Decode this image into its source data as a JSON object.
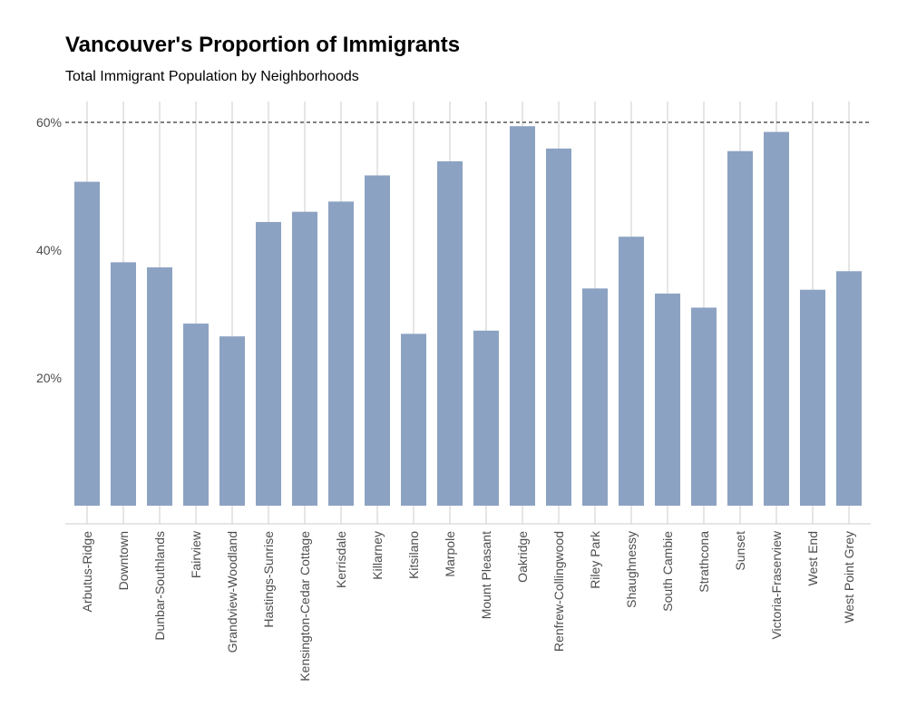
{
  "chart_data": {
    "type": "bar",
    "title": "Vancouver's Proportion of Immigrants",
    "subtitle": "Total Immigrant Population by Neighborhoods",
    "xlabel": "",
    "ylabel": "",
    "categories": [
      "Arbutus-Ridge",
      "Downtown",
      "Dunbar-Southlands",
      "Fairview",
      "Grandview-Woodland",
      "Hastings-Sunrise",
      "Kensington-Cedar Cottage",
      "Kerrisdale",
      "Killarney",
      "Kitsilano",
      "Marpole",
      "Mount Pleasant",
      "Oakridge",
      "Renfrew-Collingwood",
      "Riley Park",
      "Shaughnessy",
      "South Cambie",
      "Strathcona",
      "Sunset",
      "Victoria-Fraserview",
      "West End",
      "West Point Grey"
    ],
    "values": [
      50.7,
      38.1,
      37.3,
      28.5,
      26.5,
      44.4,
      46.0,
      47.6,
      51.7,
      26.9,
      53.9,
      27.4,
      59.4,
      55.9,
      34.0,
      42.1,
      33.2,
      31.0,
      55.5,
      58.5,
      33.8,
      36.7
    ],
    "ylim": [
      0,
      62
    ],
    "yticks": [
      20,
      40,
      60
    ],
    "ytick_labels": [
      "20%",
      "40%",
      "60%"
    ],
    "reference_line": 60,
    "grid": true,
    "colors": {
      "bar": "#8ca2c2",
      "grid": "#cccccc",
      "reference": "#000000"
    }
  }
}
